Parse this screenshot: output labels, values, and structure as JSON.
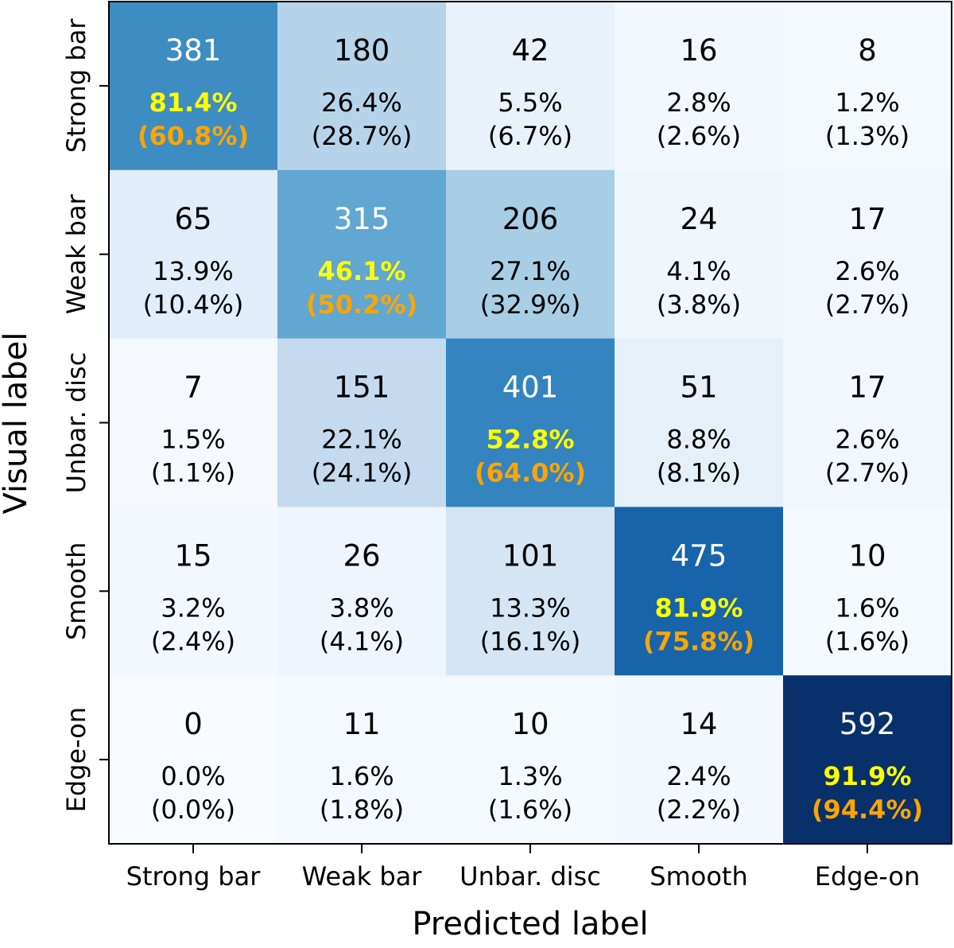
{
  "chart_data": {
    "type": "heatmap",
    "title": "",
    "xlabel": "Predicted label",
    "ylabel": "Visual label",
    "categories": [
      "Strong bar",
      "Weak bar",
      "Unbar. disc",
      "Smooth",
      "Edge-on"
    ],
    "rows": [
      {
        "label": "Strong bar",
        "cells": [
          {
            "count": "381",
            "pct": "81.4%",
            "pct_alt": "(60.8%)",
            "value": 381
          },
          {
            "count": "180",
            "pct": "26.4%",
            "pct_alt": "(28.7%)",
            "value": 180
          },
          {
            "count": "42",
            "pct": "5.5%",
            "pct_alt": "(6.7%)",
            "value": 42
          },
          {
            "count": "16",
            "pct": "2.8%",
            "pct_alt": "(2.6%)",
            "value": 16
          },
          {
            "count": "8",
            "pct": "1.2%",
            "pct_alt": "(1.3%)",
            "value": 8
          }
        ]
      },
      {
        "label": "Weak bar",
        "cells": [
          {
            "count": "65",
            "pct": "13.9%",
            "pct_alt": "(10.4%)",
            "value": 65
          },
          {
            "count": "315",
            "pct": "46.1%",
            "pct_alt": "(50.2%)",
            "value": 315
          },
          {
            "count": "206",
            "pct": "27.1%",
            "pct_alt": "(32.9%)",
            "value": 206
          },
          {
            "count": "24",
            "pct": "4.1%",
            "pct_alt": "(3.8%)",
            "value": 24
          },
          {
            "count": "17",
            "pct": "2.6%",
            "pct_alt": "(2.7%)",
            "value": 17
          }
        ]
      },
      {
        "label": "Unbar. disc",
        "cells": [
          {
            "count": "7",
            "pct": "1.5%",
            "pct_alt": "(1.1%)",
            "value": 7
          },
          {
            "count": "151",
            "pct": "22.1%",
            "pct_alt": "(24.1%)",
            "value": 151
          },
          {
            "count": "401",
            "pct": "52.8%",
            "pct_alt": "(64.0%)",
            "value": 401
          },
          {
            "count": "51",
            "pct": "8.8%",
            "pct_alt": "(8.1%)",
            "value": 51
          },
          {
            "count": "17",
            "pct": "2.6%",
            "pct_alt": "(2.7%)",
            "value": 17
          }
        ]
      },
      {
        "label": "Smooth",
        "cells": [
          {
            "count": "15",
            "pct": "3.2%",
            "pct_alt": "(2.4%)",
            "value": 15
          },
          {
            "count": "26",
            "pct": "3.8%",
            "pct_alt": "(4.1%)",
            "value": 26
          },
          {
            "count": "101",
            "pct": "13.3%",
            "pct_alt": "(16.1%)",
            "value": 101
          },
          {
            "count": "475",
            "pct": "81.9%",
            "pct_alt": "(75.8%)",
            "value": 475
          },
          {
            "count": "10",
            "pct": "1.6%",
            "pct_alt": "(1.6%)",
            "value": 10
          }
        ]
      },
      {
        "label": "Edge-on",
        "cells": [
          {
            "count": "0",
            "pct": "0.0%",
            "pct_alt": "(0.0%)",
            "value": 0
          },
          {
            "count": "11",
            "pct": "1.6%",
            "pct_alt": "(1.8%)",
            "value": 11
          },
          {
            "count": "10",
            "pct": "1.3%",
            "pct_alt": "(1.6%)",
            "value": 10
          },
          {
            "count": "14",
            "pct": "2.4%",
            "pct_alt": "(2.2%)",
            "value": 14
          },
          {
            "count": "592",
            "pct": "91.9%",
            "pct_alt": "(94.4%)",
            "value": 592
          }
        ]
      }
    ],
    "vmin": 0,
    "vmax": 592,
    "colormap": "Blues",
    "colors": {
      "text_dark": "#000000",
      "text_light": "#ffffff",
      "diag_pct": "#ffff00",
      "diag_pct_alt": "#ffa500"
    }
  }
}
